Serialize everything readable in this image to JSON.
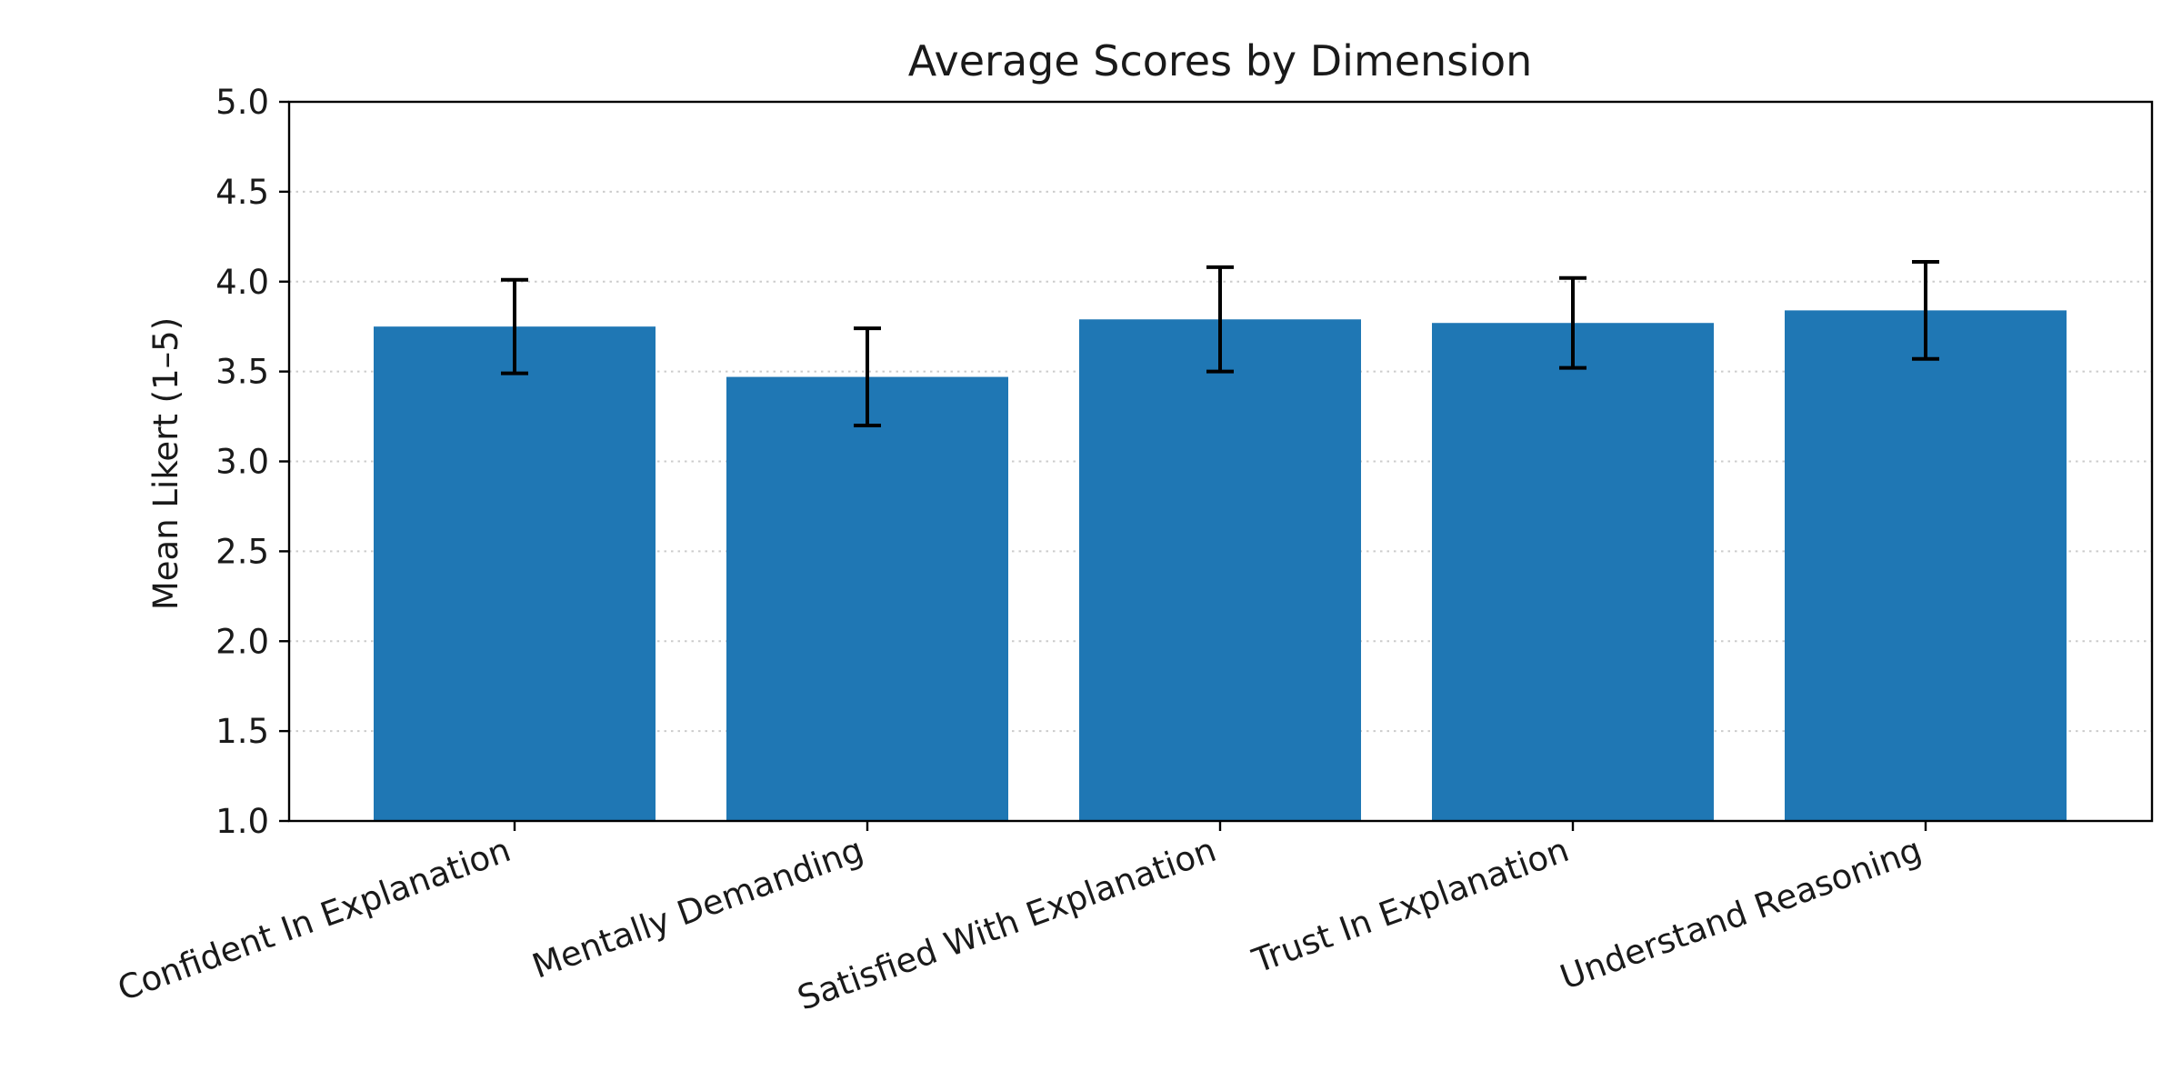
{
  "chart_data": {
    "type": "bar",
    "title": "Average Scores by Dimension",
    "xlabel": "",
    "ylabel": "Mean Likert (1–5)",
    "ylim": [
      1.0,
      5.0
    ],
    "yticks": [
      "1.0",
      "1.5",
      "2.0",
      "2.5",
      "3.0",
      "3.5",
      "4.0",
      "4.5",
      "5.0"
    ],
    "grid": "horizontal dotted",
    "categories": [
      "Confident In Explanation",
      "Mentally Demanding",
      "Satisfied With Explanation",
      "Trust In Explanation",
      "Understand Reasoning"
    ],
    "values": [
      3.75,
      3.47,
      3.79,
      3.77,
      3.84
    ],
    "error_low": [
      3.49,
      3.2,
      3.5,
      3.52,
      3.57
    ],
    "error_high": [
      4.01,
      3.74,
      4.08,
      4.02,
      4.11
    ],
    "colors": {
      "bar": "#1f77b4",
      "errorbar": "#000000",
      "grid": "#cccccc",
      "axis": "#000000"
    }
  }
}
